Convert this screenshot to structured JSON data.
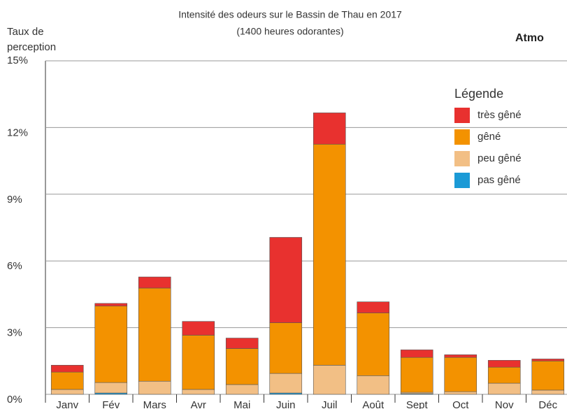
{
  "chart_data": {
    "type": "stacked_bar",
    "title": "Intensité des odeurs sur le Bassin de Thau en 2017",
    "subtitle": "(1400 heures odorantes)",
    "y_label": [
      "Taux de",
      "perception"
    ],
    "logo": "Atmo",
    "legend_title": "Légende",
    "categories": [
      "Janv",
      "Fév",
      "Mars",
      "Avr",
      "Mai",
      "Juin",
      "Juil",
      "Août",
      "Sept",
      "Oct",
      "Nov",
      "Déc"
    ],
    "series": [
      {
        "name": "pas gêné",
        "color": "#1b9ad6",
        "values": [
          0,
          0.06,
          0,
          0,
          0,
          0.06,
          0,
          0,
          0.03,
          0,
          0,
          0
        ]
      },
      {
        "name": "peu gêné",
        "color": "#f2bf85",
        "values": [
          0.22,
          0.47,
          0.59,
          0.22,
          0.44,
          0.88,
          1.31,
          0.84,
          0.06,
          0.12,
          0.5,
          0.19
        ]
      },
      {
        "name": "gêné",
        "color": "#f39200",
        "values": [
          0.78,
          3.44,
          4.19,
          2.44,
          1.62,
          2.28,
          9.94,
          2.82,
          1.57,
          1.54,
          0.72,
          1.31
        ]
      },
      {
        "name": "très gêné",
        "color": "#e8312f",
        "values": [
          0.31,
          0.12,
          0.5,
          0.62,
          0.47,
          3.84,
          1.41,
          0.5,
          0.34,
          0.12,
          0.31,
          0.09
        ]
      }
    ],
    "ylim": [
      0,
      15
    ],
    "yticks": [
      {
        "value": 0,
        "label": "0%"
      },
      {
        "value": 3,
        "label": "3%"
      },
      {
        "value": 6,
        "label": "6%"
      },
      {
        "value": 9,
        "label": "9%"
      },
      {
        "value": 12,
        "label": "12%"
      },
      {
        "value": 15,
        "label": "15%"
      }
    ],
    "grid": true
  }
}
